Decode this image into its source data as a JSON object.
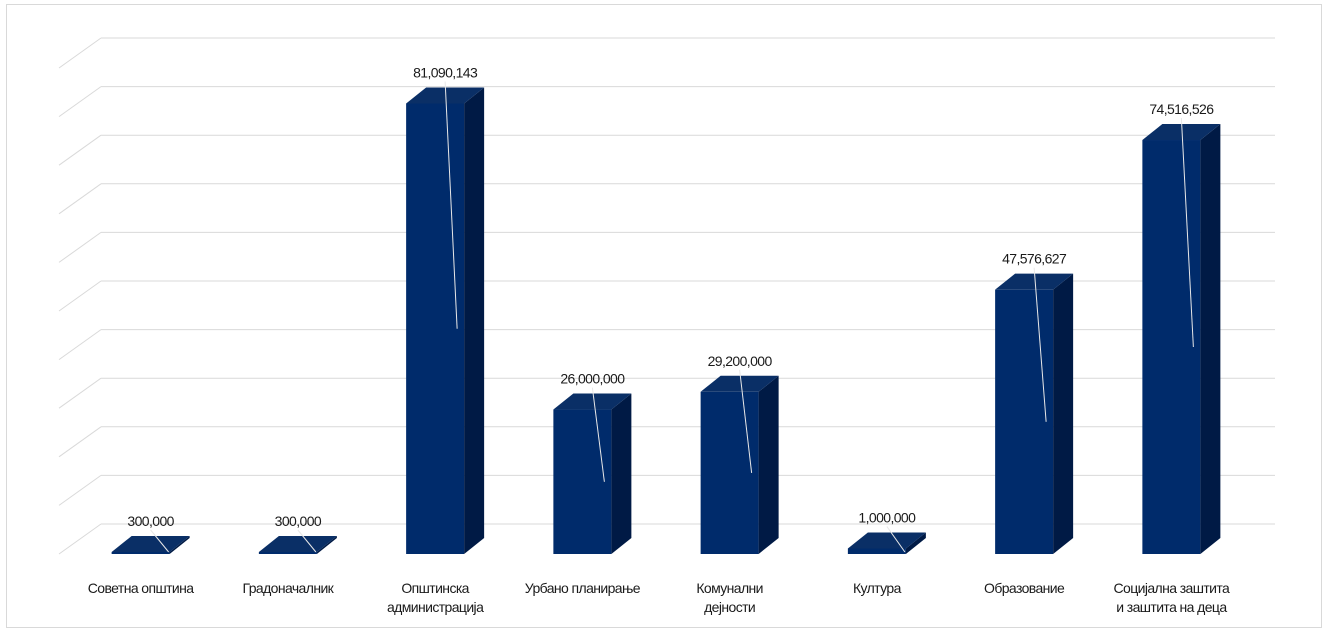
{
  "chart_data": {
    "type": "bar",
    "categories": [
      [
        "Советна општина"
      ],
      [
        "Градоначалник"
      ],
      [
        "Општинска",
        "администрација"
      ],
      [
        "Урбано планирање"
      ],
      [
        "Комунални",
        "дејности"
      ],
      [
        "Култура"
      ],
      [
        "Образование"
      ],
      [
        "Социјална заштита",
        "и заштита на деца"
      ]
    ],
    "values": [
      300000,
      300000,
      81090143,
      26000000,
      29200000,
      1000000,
      47576627,
      74516526
    ],
    "data_labels": [
      "300,000",
      "300,000",
      "81,090,143",
      "26,000,000",
      "29,200,000",
      "1,000,000",
      "47,576,627",
      "74,516,526"
    ],
    "ylim": [
      0,
      90000000
    ],
    "grid": true,
    "bar_color": "#002b6b",
    "bar_side_color": "#001a45",
    "bar_top_color": "#0a2f66",
    "grid_color": "#d9d9d9"
  }
}
